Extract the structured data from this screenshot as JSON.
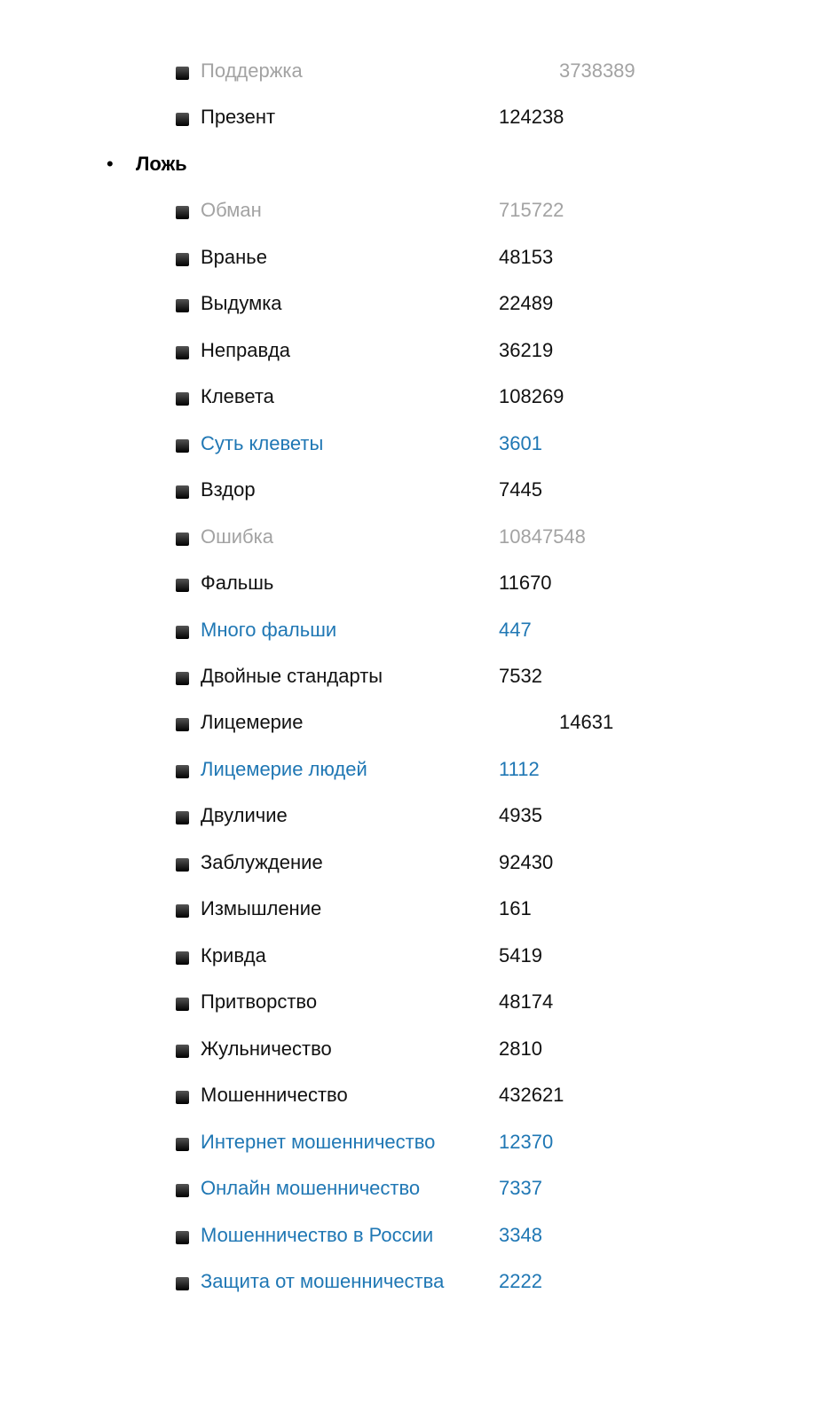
{
  "group_top": {
    "items": [
      {
        "label": "Поддержка",
        "value": "3738389",
        "color": "gray"
      },
      {
        "label": "Презент",
        "value": "124238",
        "color": "black"
      }
    ]
  },
  "group_lie": {
    "title": "Ложь",
    "items": [
      {
        "label": "Обман",
        "value": "715722",
        "color": "gray"
      },
      {
        "label": "Вранье",
        "value": "48153",
        "color": "black"
      },
      {
        "label": "Выдумка",
        "value": "22489",
        "color": "black"
      },
      {
        "label": "Неправда",
        "value": "36219",
        "color": "black"
      },
      {
        "label": "Клевета",
        "value": "108269",
        "color": "black"
      },
      {
        "label": "Суть клеветы",
        "value": "3601",
        "color": "blue"
      },
      {
        "label": "Вздор",
        "value": "7445",
        "color": "black"
      },
      {
        "label": "Ошибка",
        "value": "10847548",
        "color": "gray"
      },
      {
        "label": "Фальшь",
        "value": "11670",
        "color": "black"
      },
      {
        "label": "Много фальши",
        "value": "447",
        "color": "blue"
      },
      {
        "label": "Двойные стандарты",
        "value": "7532",
        "color": "black"
      },
      {
        "label": "Лицемерие",
        "value": "14631",
        "color": "black"
      },
      {
        "label": "Лицемерие людей",
        "value": "1112",
        "color": "blue"
      },
      {
        "label": "Двуличие",
        "value": "4935",
        "color": "black"
      },
      {
        "label": "Заблуждение",
        "value": "92430",
        "color": "black"
      },
      {
        "label": "Измышление",
        "value": "161",
        "color": "black"
      },
      {
        "label": "Кривда",
        "value": "5419",
        "color": "black"
      },
      {
        "label": "Притворство",
        "value": "48174",
        "color": "black"
      },
      {
        "label": "Жульничество",
        "value": "2810",
        "color": "black"
      },
      {
        "label": "Мошенничество",
        "value": "432621",
        "color": "black"
      },
      {
        "label": "Интернет мошенничество",
        "value": "12370",
        "color": "blue"
      },
      {
        "label": "Онлайн мошенничество",
        "value": "7337",
        "color": "blue"
      },
      {
        "label": "Мошенничество в России",
        "value": "3348",
        "color": "blue"
      },
      {
        "label": "Защита от мошенничества",
        "value": "2222",
        "color": "blue"
      }
    ]
  }
}
